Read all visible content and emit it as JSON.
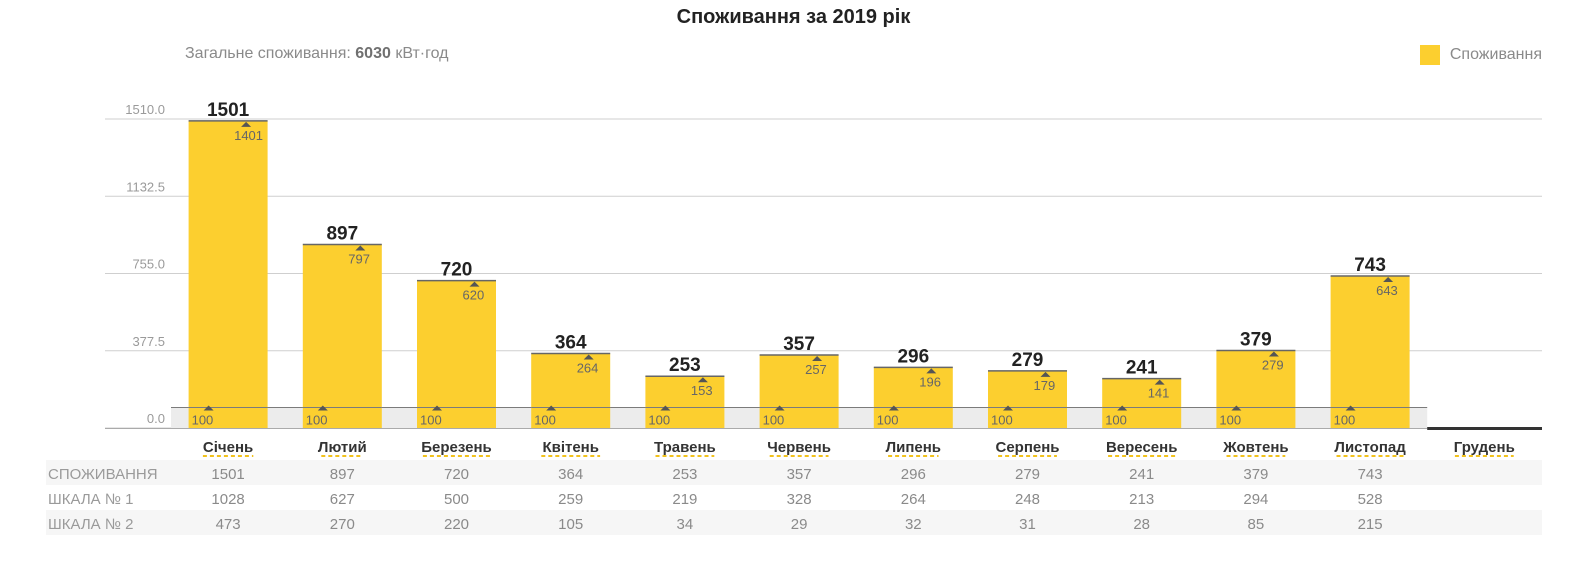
{
  "title": "Споживання за 2019 рік",
  "total": {
    "label": "Загальне споживання:",
    "value": "6030",
    "unit": "кВт·год"
  },
  "legend": {
    "label": "Споживання",
    "color": "#fccf2f"
  },
  "chart_data": {
    "type": "bar",
    "title": "Споживання за 2019 рік",
    "categories": [
      "Січень",
      "Лютий",
      "Березень",
      "Квітень",
      "Травень",
      "Червень",
      "Липень",
      "Серпень",
      "Вересень",
      "Жовтень",
      "Листопад",
      "Грудень"
    ],
    "series": [
      {
        "name": "Споживання",
        "values": [
          1501,
          897,
          720,
          364,
          253,
          357,
          296,
          279,
          241,
          379,
          743,
          null
        ]
      }
    ],
    "lower_markers": [
      100,
      100,
      100,
      100,
      100,
      100,
      100,
      100,
      100,
      100,
      100,
      null
    ],
    "upper_markers": [
      1401,
      797,
      620,
      264,
      153,
      257,
      196,
      179,
      141,
      279,
      643,
      null
    ],
    "yticks": [
      "1510.0",
      "1132.5",
      "755.0",
      "377.5",
      "0.0"
    ],
    "ylim": [
      0,
      1510
    ],
    "grid": true,
    "legend_position": "top-right",
    "bar_color": "#fccf2f"
  },
  "table": {
    "rows": [
      {
        "label": "СПОЖИВАННЯ",
        "values": [
          "1501",
          "897",
          "720",
          "364",
          "253",
          "357",
          "296",
          "279",
          "241",
          "379",
          "743",
          ""
        ]
      },
      {
        "label": "ШКАЛА № 1",
        "values": [
          "1028",
          "627",
          "500",
          "259",
          "219",
          "328",
          "264",
          "248",
          "213",
          "294",
          "528",
          ""
        ]
      },
      {
        "label": "ШКАЛА № 2",
        "values": [
          "473",
          "270",
          "220",
          "105",
          "34",
          "29",
          "32",
          "31",
          "28",
          "85",
          "215",
          ""
        ]
      }
    ]
  }
}
